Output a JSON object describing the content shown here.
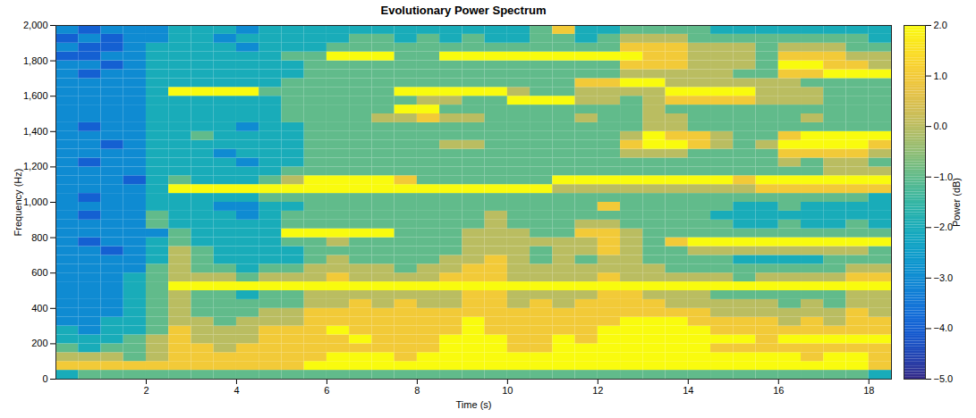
{
  "chart_data": {
    "type": "heatmap",
    "title": "Evolutionary Power Spectrum",
    "x_label": "Time (s)",
    "y_label": "Frequency (Hz)",
    "x": [
      0.25,
      0.75,
      1.25,
      1.75,
      2.25,
      2.75,
      3.25,
      3.75,
      4.25,
      4.75,
      5.25,
      5.75,
      6.25,
      6.75,
      7.25,
      7.75,
      8.25,
      8.75,
      9.25,
      9.75,
      10.25,
      10.75,
      11.25,
      11.75,
      12.25,
      12.75,
      13.25,
      13.75,
      14.25,
      14.75,
      15.25,
      15.75,
      16.25,
      16.75,
      17.25,
      17.75,
      18.25
    ],
    "y": [
      25,
      75,
      125,
      175,
      225,
      275,
      325,
      375,
      425,
      475,
      525,
      575,
      625,
      675,
      725,
      775,
      825,
      875,
      925,
      975,
      1025,
      1075,
      1125,
      1175,
      1225,
      1275,
      1325,
      1375,
      1425,
      1475,
      1525,
      1575,
      1625,
      1675,
      1725,
      1775,
      1825,
      1875,
      1925,
      1975
    ],
    "z": [
      [
        -2,
        -1,
        -1,
        -1,
        -1,
        -1,
        -1,
        -1,
        -1,
        -1,
        -1,
        -1,
        -1,
        -1,
        -1,
        -1,
        -1,
        -1,
        -1,
        -1,
        -1,
        -1,
        -1,
        -1,
        -1,
        -1,
        -1,
        -1,
        -1,
        -1,
        -1,
        -1,
        -1,
        -1,
        -1,
        -1,
        -2
      ],
      [
        1,
        1,
        1,
        1,
        1,
        1,
        1,
        1,
        1,
        1,
        1,
        2,
        2,
        2,
        2,
        2,
        2,
        2,
        2,
        2,
        2,
        2,
        2,
        2,
        2,
        2,
        2,
        2,
        2,
        2,
        2,
        2,
        2,
        2,
        2,
        2,
        1
      ],
      [
        0,
        0,
        0,
        -1,
        0,
        1,
        1,
        1,
        1,
        1,
        1,
        1,
        2,
        2,
        2,
        1,
        2,
        2,
        2,
        2,
        2,
        2,
        2,
        2,
        2,
        2,
        2,
        2,
        2,
        2,
        2,
        2,
        2,
        1,
        2,
        2,
        1
      ],
      [
        -1,
        -2,
        -1,
        -1,
        0,
        1,
        1,
        0,
        1,
        1,
        1,
        1,
        1,
        1,
        1,
        1,
        1,
        2,
        2,
        2,
        1,
        1,
        2,
        2,
        2,
        2,
        2,
        2,
        2,
        1,
        1,
        1,
        1,
        1,
        1,
        1,
        1
      ],
      [
        -2,
        -2,
        -2,
        -1,
        0,
        1,
        0,
        0,
        0,
        1,
        1,
        1,
        1,
        2,
        1,
        1,
        1,
        2,
        2,
        2,
        1,
        1,
        2,
        1,
        2,
        2,
        2,
        2,
        2,
        2,
        2,
        1,
        2,
        2,
        2,
        2,
        2
      ],
      [
        -2,
        -3,
        -2,
        -2,
        -1,
        1,
        0,
        0,
        0,
        1,
        1,
        1,
        2,
        1,
        1,
        1,
        1,
        1,
        2,
        1,
        1,
        1,
        1,
        1,
        2,
        2,
        2,
        2,
        2,
        1,
        1,
        1,
        1,
        1,
        1,
        1,
        1
      ],
      [
        -3,
        -3,
        -2,
        -2,
        -1,
        0,
        0,
        -1,
        0,
        0,
        0,
        1,
        1,
        1,
        1,
        1,
        1,
        1,
        2,
        1,
        1,
        1,
        1,
        1,
        1,
        2,
        2,
        2,
        1,
        1,
        1,
        1,
        0,
        1,
        0,
        1,
        1
      ],
      [
        -3,
        -3,
        -3,
        -2,
        -1,
        0,
        -1,
        -1,
        -1,
        0,
        0,
        1,
        1,
        1,
        1,
        1,
        1,
        1,
        1,
        1,
        1,
        1,
        1,
        1,
        1,
        1,
        1,
        1,
        1,
        0,
        0,
        0,
        0,
        0,
        0,
        1,
        0
      ],
      [
        -3,
        -3,
        -3,
        -2,
        -1,
        0,
        -1,
        -1,
        -1,
        -1,
        -1,
        0,
        0,
        1,
        0,
        1,
        0,
        0,
        1,
        1,
        0,
        1,
        0,
        1,
        1,
        1,
        1,
        0,
        0,
        0,
        0,
        0,
        -1,
        0,
        -1,
        0,
        0
      ],
      [
        -3,
        -3,
        -3,
        -2,
        -1,
        0,
        -1,
        -1,
        -2,
        -1,
        -1,
        0,
        0,
        0,
        0,
        0,
        0,
        0,
        1,
        1,
        0,
        0,
        0,
        0,
        1,
        1,
        0,
        0,
        0,
        -1,
        -1,
        -1,
        -1,
        -1,
        -1,
        0,
        0
      ],
      [
        -3,
        -3,
        -3,
        -2,
        -1,
        2,
        2,
        2,
        2,
        2,
        2,
        2,
        2,
        2,
        2,
        2,
        2,
        2,
        2,
        2,
        2,
        2,
        2,
        2,
        2,
        2,
        2,
        2,
        2,
        2,
        2,
        2,
        2,
        2,
        2,
        2,
        2
      ],
      [
        -3,
        -3,
        -3,
        -2,
        -1,
        0,
        0,
        0,
        -1,
        0,
        0,
        0,
        1,
        0,
        0,
        0,
        0,
        1,
        1,
        1,
        0,
        0,
        0,
        0,
        1,
        0,
        0,
        0,
        0,
        0,
        -1,
        0,
        0,
        0,
        0,
        1,
        1
      ],
      [
        -3,
        -3,
        -3,
        -3,
        -1,
        0,
        -1,
        -1,
        -2,
        -1,
        -1,
        0,
        0,
        0,
        0,
        -1,
        0,
        0,
        1,
        1,
        0,
        0,
        0,
        0,
        0,
        0,
        0,
        -1,
        -1,
        -1,
        -1,
        -1,
        -1,
        -1,
        -1,
        0,
        0
      ],
      [
        -3,
        -3,
        -3,
        -3,
        -2,
        0,
        -1,
        -2,
        -2,
        -2,
        -2,
        -1,
        0,
        -1,
        -1,
        -1,
        -1,
        0,
        0,
        1,
        0,
        -1,
        0,
        -1,
        0,
        0,
        -1,
        -1,
        -1,
        -1,
        -2,
        -2,
        -2,
        -2,
        -1,
        -1,
        -1
      ],
      [
        -3,
        -3,
        -4,
        -3,
        -2,
        0,
        -1,
        -2,
        -2,
        -2,
        -2,
        -1,
        -1,
        -1,
        -1,
        -1,
        -1,
        -1,
        0,
        0,
        0,
        -1,
        0,
        0,
        1,
        0,
        -1,
        -1,
        0,
        0,
        0,
        0,
        0,
        0,
        0,
        0,
        -1
      ],
      [
        -3,
        -4,
        -3,
        -3,
        -2,
        -1,
        -2,
        -2,
        -2,
        -2,
        -1,
        -1,
        0,
        -1,
        -1,
        -1,
        -1,
        -1,
        0,
        0,
        0,
        0,
        0,
        0,
        1,
        0,
        -1,
        1,
        2,
        2,
        2,
        2,
        2,
        2,
        2,
        2,
        2
      ],
      [
        -3,
        -3,
        -3,
        -3,
        -3,
        -1,
        -2,
        -2,
        -2,
        -2,
        2,
        2,
        2,
        2,
        2,
        -1,
        -1,
        -1,
        0,
        0,
        0,
        -1,
        -1,
        1,
        1,
        0,
        -1,
        -1,
        -1,
        -1,
        -1,
        -1,
        -1,
        -1,
        -1,
        -1,
        -1
      ],
      [
        -3,
        -3,
        -3,
        -3,
        -1,
        -2,
        -2,
        -2,
        -2,
        -2,
        -1,
        -1,
        -1,
        -1,
        -1,
        -1,
        -1,
        -1,
        -1,
        0,
        -1,
        -1,
        -1,
        0,
        0,
        -1,
        -1,
        -1,
        -1,
        -1,
        -2,
        -2,
        -1,
        -2,
        -2,
        -1,
        -2
      ],
      [
        -3,
        -4,
        -3,
        -3,
        -1,
        -2,
        -2,
        -2,
        -3,
        -2,
        -1,
        -1,
        -1,
        -1,
        -1,
        -1,
        -1,
        -1,
        -1,
        0,
        -1,
        -1,
        -1,
        -1,
        -1,
        -1,
        -1,
        -1,
        -1,
        -2,
        -2,
        -2,
        -2,
        -2,
        -2,
        -2,
        -2
      ],
      [
        -3,
        -3,
        -3,
        -3,
        -2,
        -2,
        -2,
        -3,
        -3,
        -2,
        -2,
        -1,
        -1,
        -1,
        -1,
        -1,
        -1,
        -1,
        -1,
        -1,
        -1,
        -1,
        -1,
        -1,
        1,
        -1,
        -1,
        -1,
        -1,
        -1,
        -2,
        -2,
        -1,
        -2,
        -2,
        -2,
        -2
      ],
      [
        -3,
        -4,
        -3,
        -3,
        -2,
        -2,
        -2,
        -2,
        -2,
        -1,
        -1,
        -1,
        -1,
        -1,
        -1,
        -1,
        -1,
        -1,
        -1,
        -1,
        -1,
        -1,
        -1,
        -1,
        -1,
        -1,
        -1,
        -1,
        -1,
        -1,
        -1,
        -1,
        -1,
        -1,
        -1,
        -1,
        -2
      ],
      [
        -3,
        -3,
        -3,
        -3,
        -2,
        2,
        2,
        2,
        2,
        2,
        2,
        2,
        2,
        2,
        2,
        2,
        2,
        2,
        2,
        2,
        2,
        2,
        0,
        0,
        0,
        0,
        0,
        0,
        0,
        0,
        0,
        1,
        1,
        1,
        1,
        1,
        1
      ],
      [
        -3,
        -3,
        -3,
        -4,
        -2,
        -1,
        -2,
        -2,
        -2,
        -1,
        0,
        2,
        2,
        2,
        2,
        1,
        -1,
        -1,
        -1,
        -1,
        -1,
        -1,
        2,
        2,
        2,
        2,
        2,
        2,
        2,
        2,
        1,
        2,
        2,
        2,
        2,
        2,
        2
      ],
      [
        -3,
        -3,
        -3,
        -3,
        -2,
        -2,
        -2,
        -2,
        -2,
        -2,
        -1,
        -1,
        -1,
        -1,
        -1,
        -1,
        -1,
        -1,
        -1,
        -1,
        -1,
        -1,
        -1,
        -1,
        -1,
        -1,
        -1,
        -1,
        -1,
        -1,
        -1,
        -1,
        -1,
        -1,
        0,
        0,
        0
      ],
      [
        -3,
        -4,
        -3,
        -3,
        -2,
        -2,
        -2,
        -2,
        -3,
        -2,
        -2,
        -1,
        -1,
        -1,
        -1,
        -1,
        -1,
        -1,
        -1,
        -1,
        -1,
        -1,
        -1,
        -1,
        -1,
        -1,
        -1,
        -1,
        -1,
        -1,
        -1,
        -1,
        0,
        -1,
        0,
        0,
        -1
      ],
      [
        -3,
        -3,
        -3,
        -3,
        -2,
        -2,
        -2,
        -3,
        -2,
        -2,
        -2,
        -1,
        -1,
        -1,
        -1,
        -1,
        -1,
        -1,
        -1,
        -1,
        -1,
        -1,
        -1,
        -1,
        -1,
        0,
        0,
        0,
        -1,
        -1,
        -1,
        -1,
        1,
        1,
        1,
        1,
        0
      ],
      [
        -3,
        -3,
        -4,
        -3,
        -2,
        -2,
        -2,
        -2,
        -2,
        -2,
        -2,
        -1,
        -1,
        -1,
        -1,
        -1,
        -1,
        0,
        0,
        -1,
        -1,
        -1,
        -1,
        -1,
        -1,
        1,
        2,
        2,
        1,
        0,
        -1,
        0,
        2,
        2,
        2,
        2,
        1
      ],
      [
        -3,
        -3,
        -3,
        -3,
        -2,
        -2,
        -1,
        -2,
        -2,
        -2,
        -2,
        -1,
        -1,
        -1,
        -1,
        -1,
        -1,
        -1,
        -1,
        -1,
        -1,
        -1,
        -1,
        -1,
        -1,
        0,
        2,
        1,
        1,
        0,
        -1,
        -1,
        1,
        2,
        2,
        2,
        2
      ],
      [
        -3,
        -4,
        -3,
        -3,
        -2,
        -2,
        -2,
        -2,
        -3,
        -2,
        -2,
        -1,
        -1,
        -1,
        -1,
        -1,
        -1,
        -1,
        -1,
        -1,
        -1,
        -1,
        -1,
        -1,
        -1,
        -1,
        0,
        0,
        -1,
        -1,
        -1,
        -1,
        -1,
        -1,
        -1,
        -1,
        -1
      ],
      [
        -3,
        -3,
        -3,
        -3,
        -2,
        -2,
        -2,
        -2,
        -2,
        -2,
        -1,
        -1,
        -1,
        -1,
        0,
        0,
        1,
        0,
        0,
        -1,
        -1,
        -1,
        -1,
        0,
        -1,
        -1,
        0,
        0,
        -1,
        -1,
        -1,
        -1,
        -1,
        0,
        -1,
        -1,
        -1
      ],
      [
        -3,
        -3,
        -3,
        -3,
        -2,
        -2,
        -2,
        -2,
        -2,
        -2,
        -1,
        -1,
        -1,
        -1,
        -1,
        2,
        2,
        -1,
        -1,
        -1,
        -1,
        -1,
        -1,
        -1,
        -1,
        -1,
        0,
        -1,
        -1,
        -1,
        -1,
        -1,
        -1,
        -1,
        -1,
        -1,
        -1
      ],
      [
        -3,
        -3,
        -3,
        -3,
        -2,
        -2,
        -2,
        -2,
        -2,
        -2,
        -1,
        -1,
        -1,
        -1,
        -1,
        -1,
        0,
        0,
        -1,
        -1,
        2,
        2,
        2,
        0,
        0,
        -1,
        0,
        1,
        1,
        1,
        1,
        0,
        0,
        0,
        -1,
        -1,
        -1
      ],
      [
        -3,
        -3,
        -3,
        -3,
        -2,
        2,
        2,
        2,
        2,
        -1,
        -1,
        -1,
        -1,
        -1,
        -1,
        2,
        2,
        2,
        2,
        2,
        0,
        -1,
        -1,
        0,
        0,
        0,
        0,
        2,
        2,
        2,
        2,
        0,
        0,
        0,
        -1,
        -1,
        -1
      ],
      [
        -3,
        -3,
        -3,
        -3,
        -2,
        -2,
        -2,
        -2,
        -2,
        -2,
        -1,
        -1,
        -1,
        -1,
        -1,
        -1,
        -1,
        -1,
        -1,
        -1,
        -1,
        -1,
        -1,
        1,
        1,
        2,
        2,
        0,
        0,
        0,
        0,
        0,
        0,
        -1,
        -1,
        -1,
        -1
      ],
      [
        -3,
        -4,
        -3,
        -3,
        -2,
        -2,
        -2,
        -2,
        -2,
        -2,
        -2,
        -1,
        -1,
        -1,
        -1,
        -1,
        -1,
        -1,
        -1,
        -1,
        -1,
        -1,
        -1,
        -1,
        -1,
        0,
        0,
        0,
        0,
        0,
        -1,
        -1,
        1,
        1,
        2,
        2,
        2
      ],
      [
        -3,
        -3,
        -4,
        -3,
        -2,
        -2,
        -2,
        -2,
        -2,
        -2,
        -2,
        -1,
        -1,
        -1,
        -1,
        -1,
        -1,
        -1,
        -1,
        -1,
        -1,
        -1,
        -1,
        -1,
        -1,
        1,
        1,
        1,
        0,
        0,
        0,
        -1,
        2,
        2,
        1,
        1,
        0
      ],
      [
        -4,
        -4,
        -3,
        -3,
        -2,
        -2,
        -2,
        -2,
        -2,
        -2,
        -1,
        -1,
        2,
        2,
        2,
        -1,
        -1,
        2,
        2,
        2,
        2,
        2,
        2,
        2,
        2,
        2,
        1,
        1,
        0,
        0,
        0,
        -1,
        1,
        1,
        1,
        0,
        0
      ],
      [
        -3,
        -4,
        -4,
        -3,
        -2,
        -2,
        -2,
        -2,
        -3,
        -2,
        -2,
        -2,
        -1,
        -1,
        -1,
        -1,
        -1,
        -1,
        -1,
        -1,
        -1,
        -1,
        -1,
        -1,
        -1,
        1,
        1,
        1,
        0,
        0,
        0,
        -1,
        0,
        0,
        0,
        -1,
        -1
      ],
      [
        -4,
        -3,
        -4,
        -3,
        -3,
        -2,
        -2,
        -3,
        -2,
        -2,
        -2,
        -2,
        -2,
        -1,
        -1,
        -2,
        -1,
        -2,
        -1,
        -2,
        -2,
        -1,
        -1,
        -2,
        -1,
        0,
        0,
        0,
        -1,
        -1,
        -1,
        -1,
        -1,
        -1,
        -1,
        -1,
        -2
      ],
      [
        -3,
        -4,
        -3,
        -3,
        -3,
        -2,
        -2,
        -2,
        -3,
        -2,
        -2,
        -2,
        -2,
        -2,
        -2,
        -2,
        -2,
        -2,
        -2,
        -2,
        -2,
        -1,
        1,
        -2,
        -2,
        -1,
        -1,
        -1,
        -1,
        -2,
        -2,
        -2,
        -2,
        -2,
        -2,
        -2,
        -2
      ]
    ],
    "xlim": [
      0,
      18.5
    ],
    "ylim": [
      0,
      2000
    ],
    "xticks": [
      2,
      4,
      6,
      8,
      10,
      12,
      14,
      16,
      18
    ],
    "yticks": [
      0,
      200,
      400,
      600,
      800,
      1000,
      1200,
      1400,
      1600,
      1800,
      2000
    ],
    "colorbar": {
      "label": "Power (dB)",
      "range": [
        -5,
        2
      ],
      "ticks": [
        -5,
        -4,
        -3,
        -2,
        -1,
        0,
        1,
        2
      ]
    }
  }
}
